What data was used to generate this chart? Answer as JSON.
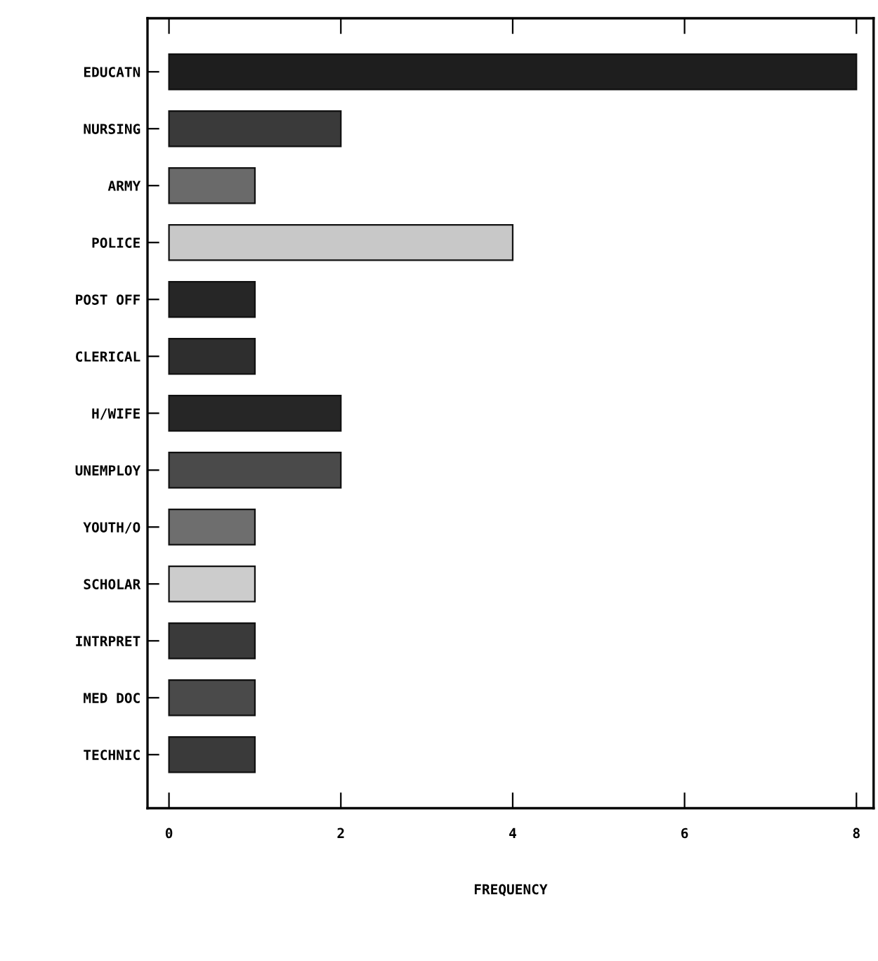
{
  "chart_data": {
    "type": "bar",
    "orientation": "horizontal",
    "xlabel": "FREQUENCY",
    "categories": [
      "EDUCATN",
      "NURSING",
      "ARMY",
      "POLICE",
      "POST OFF",
      "CLERICAL",
      "H/WIFE",
      "UNEMPLOY",
      "YOUTH/O",
      "SCHOLAR",
      "INTRPRET",
      "MED DOC",
      "TECHNIC"
    ],
    "values": [
      8,
      2,
      1,
      4,
      1,
      1,
      2,
      2,
      1,
      1,
      1,
      1,
      1
    ],
    "colors": [
      "#1e1e1e",
      "#3a3a3a",
      "#6a6a6a",
      "#c8c8c8",
      "#262626",
      "#2e2e2e",
      "#262626",
      "#4a4a4a",
      "#6e6e6e",
      "#cccccc",
      "#3a3a3a",
      "#4a4a4a",
      "#3a3a3a"
    ],
    "xlim": [
      -0.25,
      8.2
    ],
    "xticks": [
      0,
      2,
      4,
      6,
      8
    ],
    "grid": false,
    "legend": false
  }
}
